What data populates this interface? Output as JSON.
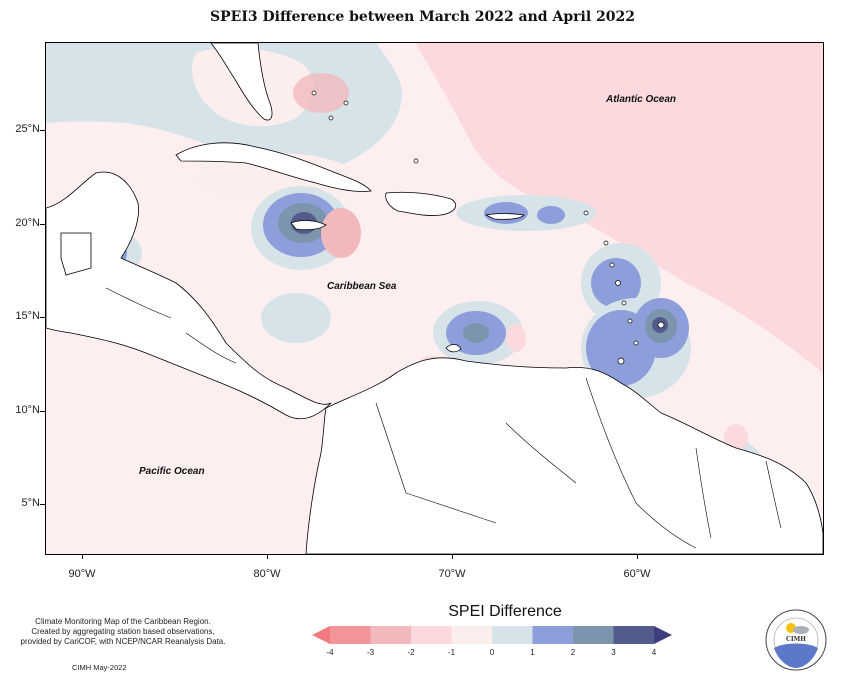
{
  "title": "SPEI3 Difference between March 2022 and April 2022",
  "map": {
    "lat_labels": [
      "25°N",
      "20°N",
      "15°N",
      "10°N",
      "5°N"
    ],
    "lat_values": [
      25,
      20,
      15,
      10,
      5
    ],
    "lon_labels": [
      "90°W",
      "80°W",
      "70°W",
      "60°W"
    ],
    "lon_values": [
      -90,
      -80,
      -70,
      -60
    ],
    "extent": {
      "lon_min": -92,
      "lon_max": -50,
      "lat_min": 2.4,
      "lat_max": 29.7
    },
    "labels": {
      "atlantic": "Atlantic Ocean",
      "caribbean": "Caribbean Sea",
      "pacific": "Pacific Ocean"
    }
  },
  "legend": {
    "title": "SPEI Difference",
    "ticks": [
      "-4",
      "-3",
      "-2",
      "-1",
      "0",
      "1",
      "2",
      "3",
      "4"
    ],
    "colors": [
      "#f3949a",
      "#f2b9bd",
      "#fbd9dc",
      "#fdeeee",
      "#d6e3e8",
      "#8d9edb",
      "#7d94ad",
      "#535b8d"
    ],
    "low_arrow_color": "#f07a82",
    "high_arrow_color": "#3d3f80"
  },
  "credits": {
    "line1": "Climate Monitoring Map of the Caribbean Region.",
    "line2": "Created by aggregating station based observations,",
    "line3": "provided by CariCOF, with NCEP/NCAR Reanalysis Data.",
    "date": "CIMH May-2022"
  },
  "logo": {
    "text": "CIMH"
  }
}
